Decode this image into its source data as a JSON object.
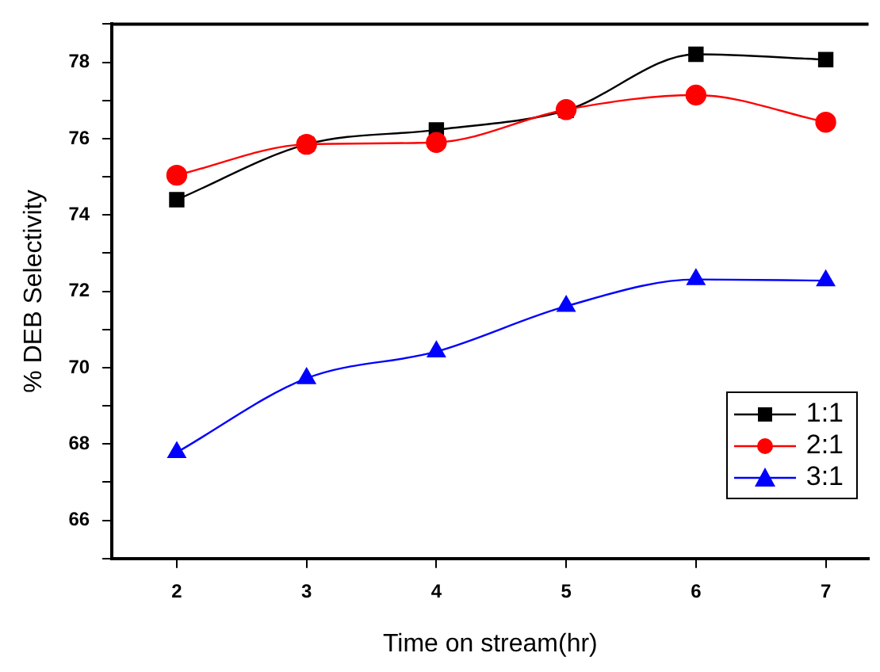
{
  "chart_data": {
    "type": "line",
    "xlabel": "Time on stream(hr)",
    "ylabel": "% DEB Selectivity",
    "x": [
      2,
      3,
      4,
      5,
      6,
      7
    ],
    "series": [
      {
        "name": "1:1",
        "color": "#000000",
        "marker": "square",
        "values": [
          74.4,
          75.85,
          76.23,
          76.74,
          78.21,
          78.07
        ]
      },
      {
        "name": "2:1",
        "color": "#ff0000",
        "marker": "circle",
        "values": [
          75.04,
          75.85,
          75.9,
          76.76,
          77.14,
          76.43
        ]
      },
      {
        "name": "3:1",
        "color": "#0000ff",
        "marker": "triangle",
        "values": [
          67.78,
          69.72,
          70.42,
          71.61,
          72.31,
          72.28
        ]
      }
    ],
    "xlim": [
      1.5,
      7.33
    ],
    "xticks": [
      2,
      3,
      4,
      5,
      6,
      7
    ],
    "ylim": [
      65,
      79
    ],
    "yticks": [
      {
        "value": 65,
        "label": null
      },
      66,
      {
        "value": 67,
        "label": null
      },
      68,
      {
        "value": 69,
        "label": null
      },
      70,
      {
        "value": 71,
        "label": null
      },
      72,
      {
        "value": 73,
        "label": null
      },
      74,
      {
        "value": 75,
        "label": null
      },
      76,
      {
        "value": 77,
        "label": null
      },
      78,
      {
        "value": 79,
        "label": null
      }
    ],
    "grid": false,
    "legend": "right"
  }
}
